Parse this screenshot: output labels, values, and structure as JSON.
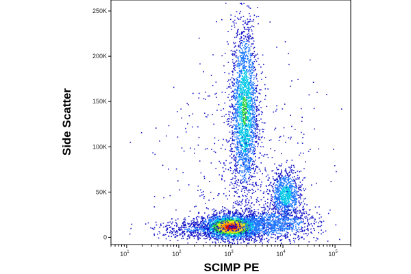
{
  "chart_data": {
    "type": "scatter",
    "subtype": "flow-cytometry-density-dot-plot",
    "xlabel": "SCIMP PE",
    "ylabel": "Side Scatter",
    "x_scale": "log",
    "xlim": [
      5,
      200000
    ],
    "ylim": [
      -8000,
      262144
    ],
    "x_ticks": [
      {
        "value": 10,
        "base": "10",
        "exp": "1"
      },
      {
        "value": 100,
        "base": "10",
        "exp": "2"
      },
      {
        "value": 1000,
        "base": "10",
        "exp": "3"
      },
      {
        "value": 10000,
        "base": "10",
        "exp": "4"
      },
      {
        "value": 100000,
        "base": "10",
        "exp": "5"
      }
    ],
    "y_ticks": [
      {
        "value": 0,
        "label": "0"
      },
      {
        "value": 50000,
        "label": "50K"
      },
      {
        "value": 100000,
        "label": "100K"
      },
      {
        "value": 150000,
        "label": "150K"
      },
      {
        "value": 200000,
        "label": "200K"
      },
      {
        "value": 250000,
        "label": "250K"
      }
    ],
    "grid": false,
    "colormap": [
      "#1414c8",
      "#1e78ff",
      "#00c8e6",
      "#32d23c",
      "#f0e614",
      "#ff8c00",
      "#e60000"
    ],
    "populations": [
      {
        "x_center": 1000,
        "y_center": 12000,
        "x_spread_decades": 0.3,
        "y_spread": 7000,
        "events": 2600,
        "relative_density": 1.0
      },
      {
        "x_center": 1800,
        "y_center": 140000,
        "x_spread_decades": 0.13,
        "y_spread": 48000,
        "events": 2200,
        "relative_density": 0.45
      },
      {
        "x_center": 11000,
        "y_center": 47000,
        "x_spread_decades": 0.15,
        "y_spread": 14000,
        "events": 900,
        "relative_density": 0.35
      },
      {
        "x_center": 6000,
        "y_center": 15000,
        "x_spread_decades": 0.45,
        "y_spread": 9000,
        "events": 1000,
        "relative_density": 0.25
      },
      {
        "x_center": 200,
        "y_center": 9000,
        "x_spread_decades": 0.4,
        "y_spread": 5000,
        "events": 400,
        "relative_density": 0.1
      },
      {
        "x_center": 1500,
        "y_center": 80000,
        "x_spread_decades": 0.7,
        "y_spread": 70000,
        "events": 500,
        "relative_density": 0.03
      }
    ]
  }
}
